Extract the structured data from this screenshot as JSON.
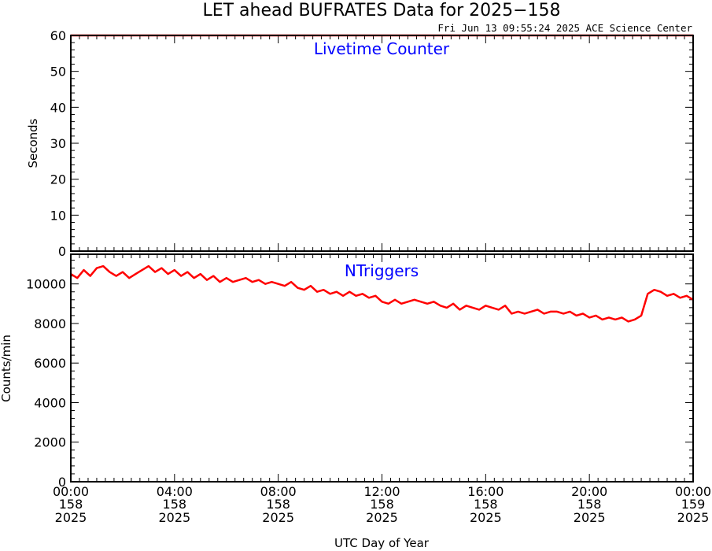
{
  "title": "LET ahead BUFRATES Data for 2025−158",
  "timestamp": "Fri Jun 13 09:55:24 2025 ACE Science Center",
  "xlabel": "UTC Day of Year",
  "colors": {
    "series": "#ff0000",
    "panel_label": "#0000ff",
    "axes": "#000000"
  },
  "chart_data": [
    {
      "type": "line",
      "title": "Livetime Counter",
      "ylabel": "Seconds",
      "xlim": [
        0,
        24
      ],
      "ylim": [
        0,
        60
      ],
      "yticks": [
        0,
        10,
        20,
        30,
        40,
        50,
        60
      ],
      "ytick_labels": [
        "0",
        "10",
        "20",
        "30",
        "40",
        "50",
        "60"
      ],
      "series": [
        {
          "x": [
            0,
            24
          ],
          "y": [
            60,
            60
          ]
        }
      ]
    },
    {
      "type": "line",
      "title": "NTriggers",
      "ylabel": "Counts/min",
      "xlim": [
        0,
        24
      ],
      "ylim": [
        0,
        11500
      ],
      "yticks": [
        0,
        2000,
        4000,
        6000,
        8000,
        10000
      ],
      "ytick_labels": [
        "0",
        "2000",
        "4000",
        "6000",
        "8000",
        "10000"
      ],
      "series": [
        {
          "x": [
            0,
            0.25,
            0.5,
            0.75,
            1,
            1.25,
            1.5,
            1.75,
            2,
            2.25,
            2.5,
            2.75,
            3,
            3.25,
            3.5,
            3.75,
            4,
            4.25,
            4.5,
            4.75,
            5,
            5.25,
            5.5,
            5.75,
            6,
            6.25,
            6.5,
            6.75,
            7,
            7.25,
            7.5,
            7.75,
            8,
            8.25,
            8.5,
            8.75,
            9,
            9.25,
            9.5,
            9.75,
            10,
            10.25,
            10.5,
            10.75,
            11,
            11.25,
            11.5,
            11.75,
            12,
            12.25,
            12.5,
            12.75,
            13,
            13.25,
            13.5,
            13.75,
            14,
            14.25,
            14.5,
            14.75,
            15,
            15.25,
            15.5,
            15.75,
            16,
            16.25,
            16.5,
            16.75,
            17,
            17.25,
            17.5,
            17.75,
            18,
            18.25,
            18.5,
            18.75,
            19,
            19.25,
            19.5,
            19.75,
            20,
            20.25,
            20.5,
            20.75,
            21,
            21.25,
            21.5,
            21.75,
            22,
            22.25,
            22.5,
            22.75,
            23,
            23.25,
            23.5,
            23.75,
            24
          ],
          "y": [
            10500,
            10300,
            10700,
            10400,
            10800,
            10900,
            10600,
            10400,
            10600,
            10300,
            10500,
            10700,
            10900,
            10600,
            10800,
            10500,
            10700,
            10400,
            10600,
            10300,
            10500,
            10200,
            10400,
            10100,
            10300,
            10100,
            10200,
            10300,
            10100,
            10200,
            10000,
            10100,
            10000,
            9900,
            10100,
            9800,
            9700,
            9900,
            9600,
            9700,
            9500,
            9600,
            9400,
            9600,
            9400,
            9500,
            9300,
            9400,
            9100,
            9000,
            9200,
            9000,
            9100,
            9200,
            9100,
            9000,
            9100,
            8900,
            8800,
            9000,
            8700,
            8900,
            8800,
            8700,
            8900,
            8800,
            8700,
            8900,
            8500,
            8600,
            8500,
            8600,
            8700,
            8500,
            8600,
            8600,
            8500,
            8600,
            8400,
            8500,
            8300,
            8400,
            8200,
            8300,
            8200,
            8300,
            8100,
            8200,
            8400,
            9500,
            9700,
            9600,
            9400,
            9500,
            9300,
            9400,
            9200
          ]
        }
      ]
    }
  ],
  "xaxis": {
    "ticks": [
      0,
      4,
      8,
      12,
      16,
      20,
      24
    ],
    "labels": [
      {
        "time": "00:00",
        "doy": "158",
        "year": "2025"
      },
      {
        "time": "04:00",
        "doy": "158",
        "year": "2025"
      },
      {
        "time": "08:00",
        "doy": "158",
        "year": "2025"
      },
      {
        "time": "12:00",
        "doy": "158",
        "year": "2025"
      },
      {
        "time": "16:00",
        "doy": "158",
        "year": "2025"
      },
      {
        "time": "20:00",
        "doy": "158",
        "year": "2025"
      },
      {
        "time": "00:00",
        "doy": "159",
        "year": "2025"
      }
    ]
  }
}
